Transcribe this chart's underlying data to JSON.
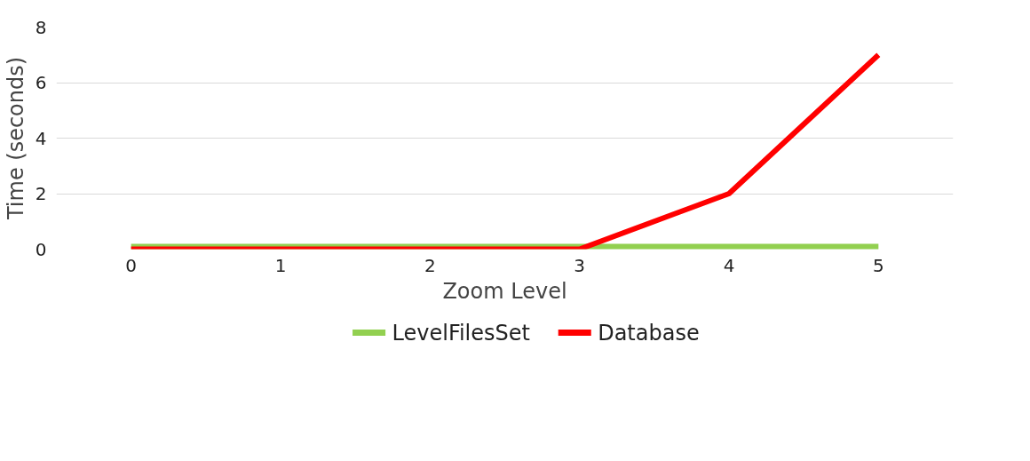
{
  "chart_data": {
    "type": "line",
    "xlabel": "Zoom Level",
    "ylabel": "Time (seconds)",
    "categories": [
      "0",
      "1",
      "2",
      "3",
      "4",
      "5"
    ],
    "series": [
      {
        "name": "LevelFilesSet",
        "color": "#92d050",
        "values": [
          0,
          0,
          0,
          0,
          0,
          0
        ]
      },
      {
        "name": "Database",
        "color": "#ff0000",
        "values": [
          0,
          0,
          0,
          0,
          2,
          7
        ]
      }
    ],
    "ylim": [
      0,
      8
    ],
    "yticks": [
      0,
      2,
      4,
      6,
      8
    ],
    "grid": "y",
    "legend": "bottom",
    "marker": "none",
    "line_style": "solid"
  }
}
